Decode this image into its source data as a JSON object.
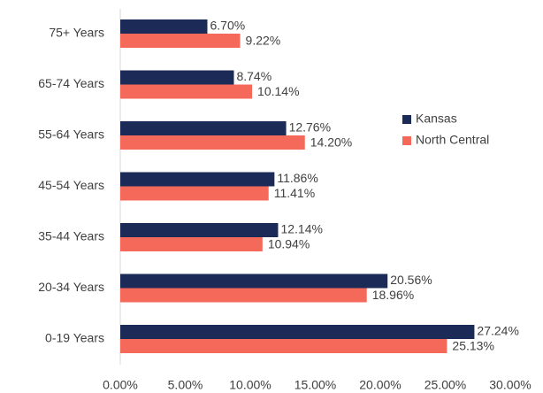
{
  "chart_data": {
    "type": "barh",
    "categories": [
      "75+ Years",
      "65-74 Years",
      "55-64 Years",
      "45-54 Years",
      "35-44 Years",
      "20-34 Years",
      "0-19 Years"
    ],
    "series": [
      {
        "name": "Kansas",
        "color": "#1b2a57",
        "values": [
          6.7,
          8.74,
          12.76,
          11.86,
          12.14,
          20.56,
          27.24
        ],
        "value_labels": [
          "6.70%",
          "8.74%",
          "12.76%",
          "11.86%",
          "12.14%",
          "20.56%",
          "27.24%"
        ]
      },
      {
        "name": "North Central",
        "color": "#f4695a",
        "values": [
          9.22,
          10.14,
          14.2,
          11.41,
          10.94,
          18.96,
          25.13
        ],
        "value_labels": [
          "9.22%",
          "10.14%",
          "14.20%",
          "11.41%",
          "10.94%",
          "18.96%",
          "25.13%"
        ]
      }
    ],
    "xlim": [
      0,
      30
    ],
    "xticks": [
      {
        "value": 0,
        "label": "0.00%"
      },
      {
        "value": 5,
        "label": "5.00%"
      },
      {
        "value": 10,
        "label": "10.00%"
      },
      {
        "value": 15,
        "label": "15.00%"
      },
      {
        "value": 20,
        "label": "20.00%"
      },
      {
        "value": 25,
        "label": "25.00%"
      },
      {
        "value": 30,
        "label": "30.00%"
      }
    ],
    "legend": "right"
  }
}
